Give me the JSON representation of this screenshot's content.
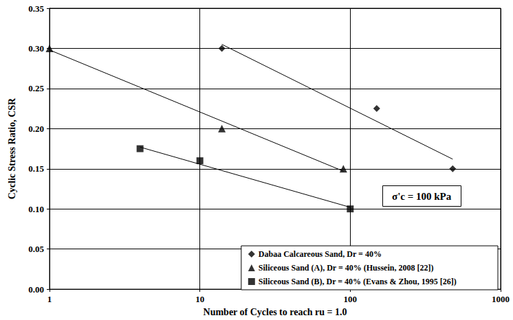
{
  "chart_data": {
    "type": "scatter",
    "xlabel": "Number of Cycles to reach ru = 1.0",
    "ylabel": "Cyclic Stress Ratio, CSR",
    "annotation": "σ'c = 100 kPa",
    "log": "x",
    "grid": true,
    "legend": "lower right",
    "xlim": [
      1,
      1000
    ],
    "xticks": [
      1,
      10,
      100,
      1000
    ],
    "ylim": [
      0,
      0.35
    ],
    "yticks": [
      {
        "value": 0,
        "label": "0.00"
      },
      {
        "value": 0.05,
        "label": "0.05"
      },
      {
        "value": 0.1,
        "label": "0.10"
      },
      {
        "value": 0.15,
        "label": "0.15"
      },
      {
        "value": 0.2,
        "label": "0.20"
      },
      {
        "value": 0.25,
        "label": "0.25"
      },
      {
        "value": 0.3,
        "label": "0.30"
      },
      {
        "value": 0.35,
        "label": "0.35"
      }
    ],
    "series": [
      {
        "name": "Dabaa Calcareous Sand, Dr = 40%",
        "color": "#000000",
        "marker": "diamond",
        "x": [
          14,
          150,
          480
        ],
        "values": [
          0.3,
          0.225,
          0.15
        ],
        "trendline": {
          "x": [
            14,
            480
          ],
          "values": [
            0.305,
            0.162
          ]
        }
      },
      {
        "name": "Siliceous Sand (A), Dr = 40% (Hussein, 2008 [22])",
        "color": "#000000",
        "marker": "triangle",
        "x": [
          1,
          14,
          90
        ],
        "values": [
          0.3,
          0.2,
          0.15
        ],
        "trendline": {
          "x": [
            1,
            90
          ],
          "values": [
            0.298,
            0.147
          ]
        }
      },
      {
        "name": "Siliceous Sand (B), Dr = 40% (Evans & Zhou, 1995 [26])",
        "color": "#000000",
        "marker": "square",
        "x": [
          4,
          10,
          100
        ],
        "values": [
          0.175,
          0.16,
          0.1
        ],
        "trendline": {
          "x": [
            4,
            100
          ],
          "values": [
            0.177,
            0.102
          ]
        }
      }
    ]
  }
}
